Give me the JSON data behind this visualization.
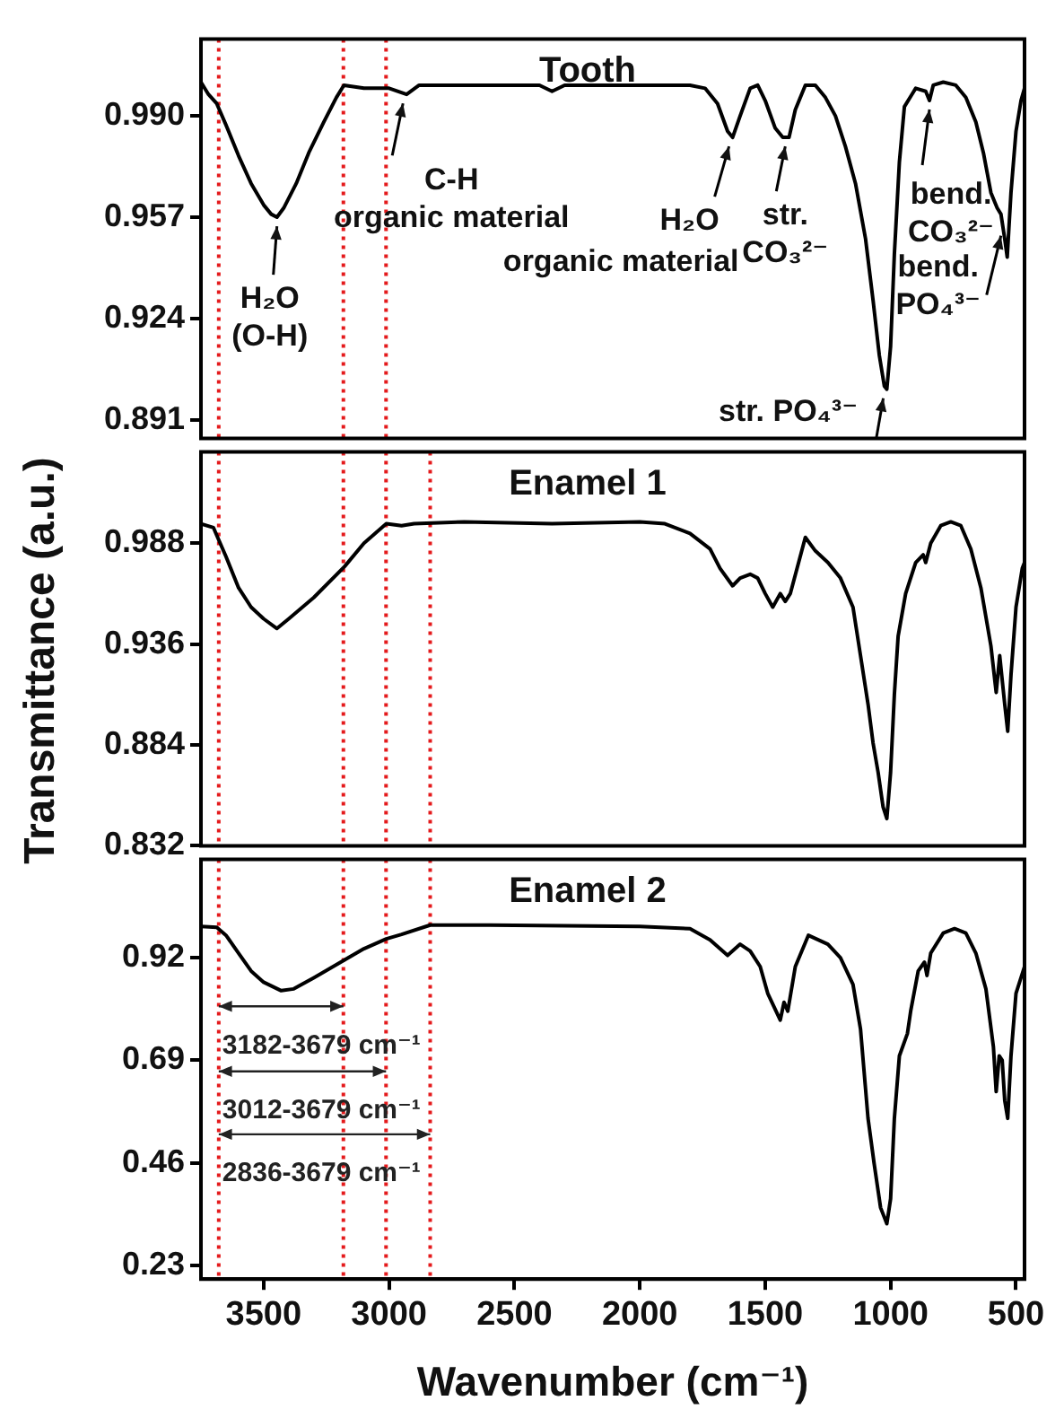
{
  "chart_data": [
    {
      "type": "line",
      "title": "Tooth",
      "ylabel": "Transmittance (a.u.)",
      "tick_labels": "y",
      "marker": "none",
      "line_style": "solid",
      "xlim": [
        3750,
        466
      ],
      "ylim": [
        0.885,
        1.015
      ],
      "yticks": [
        {
          "value": 0.99,
          "label": "0.990"
        },
        0.957,
        0.924,
        0.891
      ],
      "x": [
        3750,
        3720,
        3687,
        3650,
        3600,
        3550,
        3500,
        3470,
        3447,
        3420,
        3370,
        3320,
        3260,
        3210,
        3180,
        3100,
        3000,
        2930,
        2880,
        2700,
        2400,
        2350,
        2300,
        2000,
        1800,
        1740,
        1690,
        1650,
        1630,
        1600,
        1560,
        1530,
        1500,
        1460,
        1430,
        1405,
        1380,
        1340,
        1300,
        1260,
        1220,
        1180,
        1140,
        1100,
        1070,
        1045,
        1025,
        1015,
        1000,
        985,
        965,
        945,
        900,
        860,
        845,
        830,
        790,
        740,
        700,
        660,
        630,
        600,
        585,
        575,
        560,
        545,
        535,
        520,
        500,
        480,
        466
      ],
      "series": [
        {
          "color": "#000000",
          "values": [
            1.001,
            0.997,
            0.994,
            0.987,
            0.977,
            0.968,
            0.961,
            0.958,
            0.957,
            0.96,
            0.968,
            0.978,
            0.988,
            0.996,
            1.0,
            0.999,
            0.999,
            0.997,
            1.0,
            1.0,
            1.0,
            0.998,
            1.0,
            1.0,
            1.0,
            0.999,
            0.994,
            0.985,
            0.983,
            0.99,
            0.999,
            1.0,
            0.995,
            0.986,
            0.983,
            0.983,
            0.992,
            1.0,
            1.0,
            0.996,
            0.99,
            0.98,
            0.968,
            0.95,
            0.93,
            0.912,
            0.902,
            0.901,
            0.915,
            0.945,
            0.975,
            0.993,
            0.999,
            0.998,
            0.995,
            1.0,
            1.001,
            1.0,
            0.996,
            0.988,
            0.978,
            0.965,
            0.962,
            0.96,
            0.958,
            0.95,
            0.944,
            0.965,
            0.985,
            0.995,
            0.999
          ]
        }
      ],
      "ref_lines": [
        {
          "axis": "x",
          "value": 3679,
          "color": "#e41a1c",
          "line_style": "dotted"
        },
        {
          "axis": "x",
          "value": 3182,
          "color": "#e41a1c",
          "line_style": "dotted"
        },
        {
          "axis": "x",
          "value": 3012,
          "color": "#e41a1c",
          "line_style": "dotted"
        }
      ],
      "annotations": [
        {
          "text": "H₂O\n(O-H)",
          "x": 3447,
          "y": 0.957
        },
        {
          "text": "C-H\norganic material",
          "x": 2930,
          "y": 0.997
        },
        "organic material",
        {
          "text": "H₂O",
          "x": 1630,
          "y": 0.983
        },
        {
          "text": "str.\nCO₃²⁻",
          "x": 1420,
          "y": 0.983
        },
        {
          "text": "bend.\nCO₃²⁻",
          "x": 845,
          "y": 0.995
        },
        {
          "text": "bend.\nPO₄³⁻",
          "x": 560,
          "y": 0.958
        },
        {
          "text": "str. PO₄³⁻",
          "x": 1015,
          "y": 0.901
        }
      ]
    },
    {
      "type": "line",
      "title": "Enamel 1",
      "tick_labels": "y",
      "marker": "none",
      "line_style": "solid",
      "xlim": [
        3750,
        466
      ],
      "ylim": [
        0.832,
        1.035
      ],
      "yticks": [
        0.988,
        0.936,
        0.884,
        0.832
      ],
      "x": [
        3750,
        3700,
        3687,
        3650,
        3600,
        3550,
        3500,
        3447,
        3400,
        3300,
        3177,
        3100,
        3011,
        2950,
        2900,
        2700,
        2350,
        2000,
        1900,
        1800,
        1720,
        1680,
        1630,
        1600,
        1560,
        1530,
        1500,
        1470,
        1440,
        1420,
        1400,
        1340,
        1300,
        1250,
        1200,
        1150,
        1120,
        1090,
        1070,
        1050,
        1030,
        1015,
        1000,
        985,
        970,
        940,
        900,
        870,
        860,
        840,
        800,
        760,
        720,
        680,
        640,
        600,
        579,
        565,
        545,
        533,
        520,
        500,
        475,
        466
      ],
      "series": [
        {
          "color": "#000000",
          "values": [
            0.998,
            0.996,
            0.992,
            0.981,
            0.965,
            0.955,
            0.949,
            0.944,
            0.949,
            0.96,
            0.976,
            0.988,
            0.998,
            0.997,
            0.998,
            0.999,
            0.998,
            0.999,
            0.998,
            0.993,
            0.985,
            0.975,
            0.966,
            0.97,
            0.972,
            0.97,
            0.962,
            0.955,
            0.962,
            0.958,
            0.962,
            0.991,
            0.984,
            0.978,
            0.97,
            0.955,
            0.93,
            0.905,
            0.885,
            0.87,
            0.852,
            0.846,
            0.87,
            0.91,
            0.94,
            0.962,
            0.978,
            0.982,
            0.978,
            0.988,
            0.997,
            0.999,
            0.997,
            0.985,
            0.965,
            0.935,
            0.911,
            0.93,
            0.905,
            0.891,
            0.92,
            0.955,
            0.975,
            0.978
          ]
        }
      ],
      "ref_lines": [
        {
          "axis": "x",
          "value": 3679,
          "color": "#e41a1c",
          "line_style": "dotted"
        },
        {
          "axis": "x",
          "value": 3182,
          "color": "#e41a1c",
          "line_style": "dotted"
        },
        {
          "axis": "x",
          "value": 3012,
          "color": "#e41a1c",
          "line_style": "dotted"
        },
        {
          "axis": "x",
          "value": 2836,
          "color": "#e41a1c",
          "line_style": "dotted"
        }
      ]
    },
    {
      "type": "line",
      "title": "Enamel 2",
      "xlabel": "Wavenumber (cm⁻¹)",
      "marker": "none",
      "line_style": "solid",
      "xlim": [
        3750,
        466
      ],
      "xticks": [
        3500,
        3000,
        2500,
        2000,
        1500,
        1000,
        500
      ],
      "ylim": [
        0.2,
        1.14
      ],
      "yticks": [
        0.92,
        0.69,
        0.46,
        0.23
      ],
      "x": [
        3750,
        3687,
        3650,
        3600,
        3550,
        3500,
        3430,
        3380,
        3300,
        3177,
        3100,
        3011,
        2950,
        2836,
        2600,
        2000,
        1800,
        1720,
        1650,
        1600,
        1560,
        1520,
        1490,
        1440,
        1425,
        1410,
        1380,
        1328,
        1250,
        1200,
        1150,
        1120,
        1090,
        1066,
        1040,
        1015,
        1000,
        985,
        965,
        933,
        920,
        890,
        865,
        855,
        840,
        790,
        745,
        700,
        660,
        620,
        590,
        579,
        567,
        555,
        545,
        533,
        520,
        500,
        466
      ],
      "series": [
        {
          "color": "#000000",
          "values": [
            0.99,
            0.988,
            0.97,
            0.93,
            0.89,
            0.865,
            0.846,
            0.85,
            0.875,
            0.915,
            0.94,
            0.962,
            0.972,
            0.993,
            0.993,
            0.99,
            0.985,
            0.96,
            0.925,
            0.95,
            0.935,
            0.9,
            0.84,
            0.78,
            0.82,
            0.8,
            0.9,
            0.97,
            0.95,
            0.92,
            0.86,
            0.76,
            0.56,
            0.46,
            0.36,
            0.324,
            0.38,
            0.56,
            0.7,
            0.75,
            0.8,
            0.89,
            0.91,
            0.88,
            0.93,
            0.975,
            0.985,
            0.975,
            0.93,
            0.85,
            0.72,
            0.62,
            0.7,
            0.69,
            0.6,
            0.56,
            0.7,
            0.84,
            0.9
          ]
        }
      ],
      "ref_lines": [
        {
          "axis": "x",
          "value": 3679,
          "color": "#e41a1c",
          "line_style": "dotted"
        },
        {
          "axis": "x",
          "value": 3182,
          "color": "#e41a1c",
          "line_style": "dotted"
        },
        {
          "axis": "x",
          "value": 3012,
          "color": "#e41a1c",
          "line_style": "dotted"
        },
        {
          "axis": "x",
          "value": 2836,
          "color": "#e41a1c",
          "line_style": "dotted"
        }
      ],
      "annotations": [
        "3182-3679 cm⁻¹",
        "3012-3679 cm⁻¹",
        "2836-3679 cm⁻¹"
      ]
    }
  ]
}
